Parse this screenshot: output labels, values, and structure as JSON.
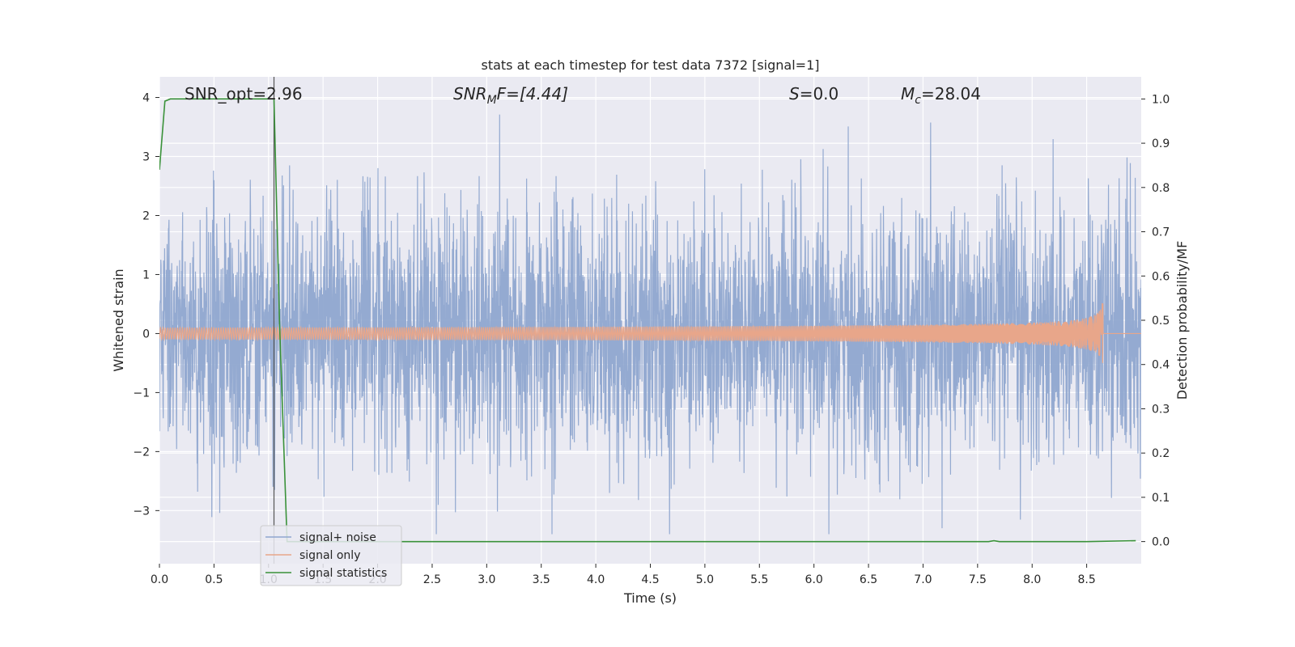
{
  "chart_data": {
    "type": "line",
    "title": "stats at each timestep for test data 7372 [signal=1]",
    "xlabel": "Time (s)",
    "ylabel": "Whitened strain",
    "y2label": "Detection probability/MF",
    "xlim": [
      0.0,
      9.0
    ],
    "ylim": [
      -3.9,
      4.35
    ],
    "y2lim": [
      -0.05,
      1.05
    ],
    "xticks": [
      0.0,
      0.5,
      1.0,
      1.5,
      2.0,
      2.5,
      3.0,
      3.5,
      4.0,
      4.5,
      5.0,
      5.5,
      6.0,
      6.5,
      7.0,
      7.5,
      8.0,
      8.5
    ],
    "xtick_labels": [
      "0.0",
      "0.5",
      "1.0",
      "1.5",
      "2.0",
      "2.5",
      "3.0",
      "3.5",
      "4.0",
      "4.5",
      "5.0",
      "5.5",
      "6.0",
      "6.5",
      "7.0",
      "7.5",
      "8.0",
      "8.5"
    ],
    "yticks": [
      4,
      3,
      2,
      1,
      0,
      -1,
      -2,
      -3
    ],
    "ytick_labels": [
      "4",
      "3",
      "2",
      "1",
      "0",
      "−1",
      "−2",
      "−3"
    ],
    "y2ticks": [
      1.0,
      0.9,
      0.8,
      0.7,
      0.6,
      0.5,
      0.4,
      0.3,
      0.2,
      0.1,
      0.0
    ],
    "y2tick_labels": [
      "1.0",
      "0.9",
      "0.8",
      "0.7",
      "0.6",
      "0.5",
      "0.4",
      "0.3",
      "0.2",
      "0.1",
      "0.0"
    ],
    "grid": true,
    "legend_position": "lower-left",
    "annotations": {
      "snr_opt": "SNR_opt=2.96",
      "snr_mf_base": "SNR",
      "snr_mf_sub": "M",
      "snr_mf_tail": "F=[4.44]",
      "s_base": "S",
      "s_tail": "=0.0",
      "mc_base": "M",
      "mc_sub": "c",
      "mc_tail": "=28.04"
    },
    "vline_x": 1.05,
    "series": [
      {
        "name": "signal+ noise",
        "color": "#8fa6cf",
        "axis": "left",
        "description_values": "whitened noise, roughly within [-3.4, 4.0]",
        "range": [
          -3.4,
          4.0
        ]
      },
      {
        "name": "signal only",
        "color": "#e8a68a",
        "axis": "left",
        "chirp_end_time": 8.65,
        "peak_amplitude": 0.75
      },
      {
        "name": "signal statistics",
        "color": "#3a923a",
        "axis": "right",
        "x": [
          0.0,
          0.05,
          0.1,
          0.5,
          1.0,
          1.05,
          1.1,
          1.17,
          1.2,
          2.0,
          3.0,
          4.0,
          5.0,
          6.0,
          7.0,
          7.6,
          7.65,
          7.7,
          8.0,
          8.5,
          8.95
        ],
        "y": [
          0.84,
          0.995,
          1.0,
          1.0,
          1.0,
          1.0,
          0.5,
          0.0,
          0.0,
          0.0,
          0.0,
          0.0,
          0.0,
          0.0,
          0.0,
          0.0,
          0.002,
          0.0,
          0.0,
          0.0,
          0.002
        ]
      }
    ]
  }
}
